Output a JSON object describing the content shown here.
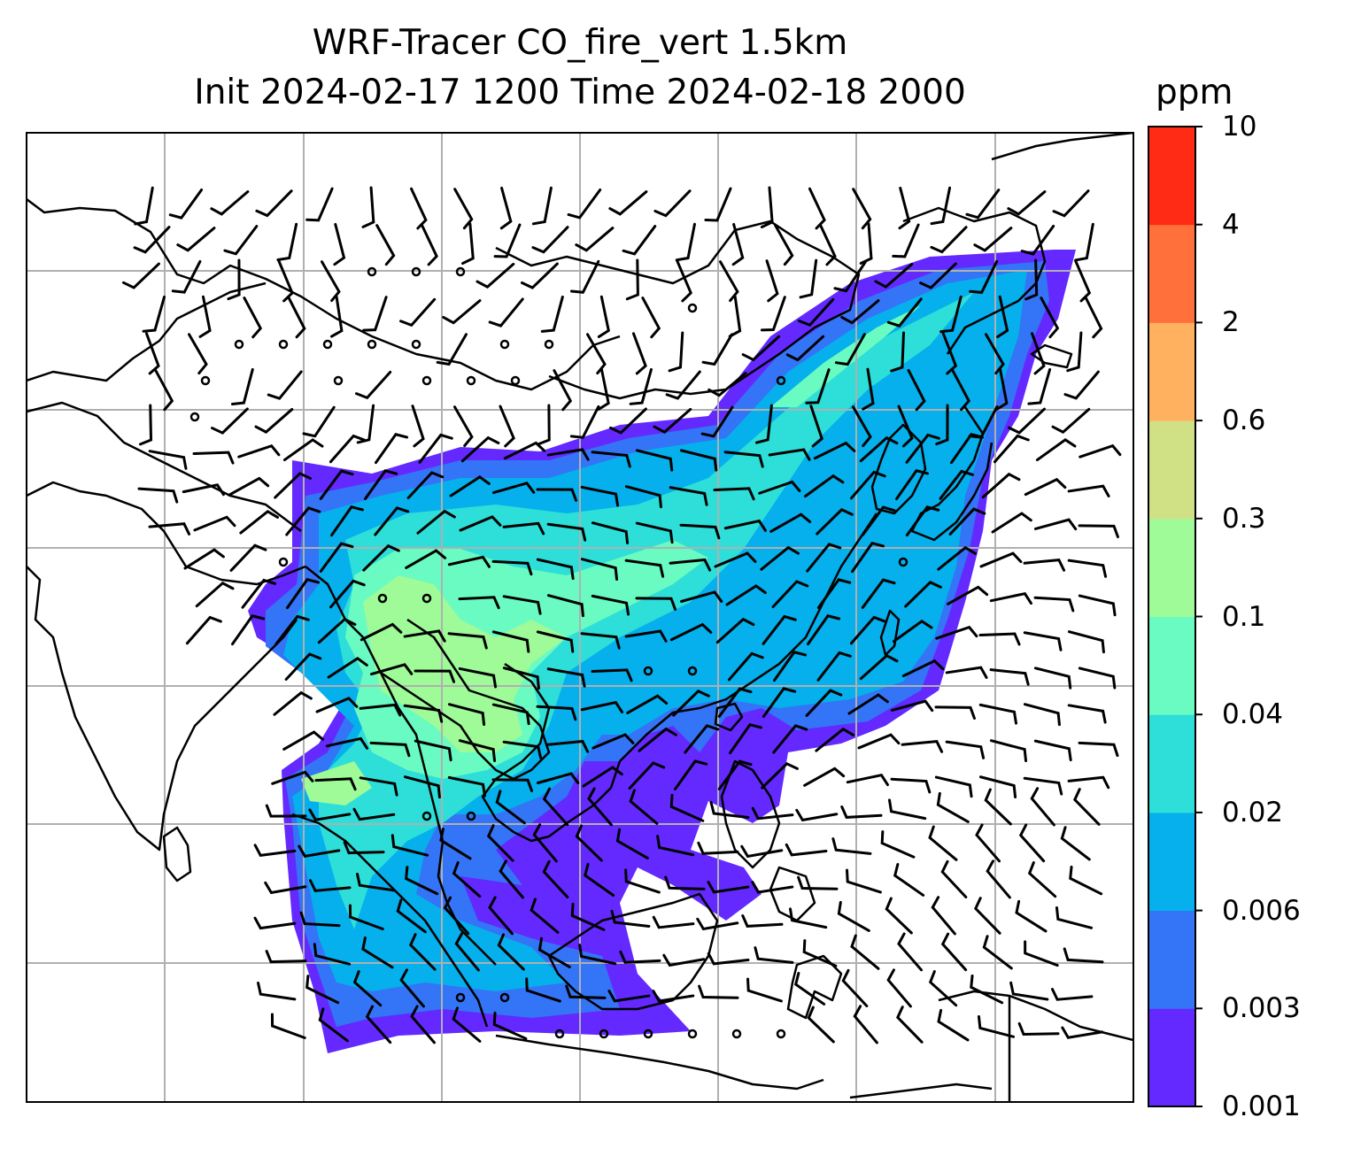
{
  "title": {
    "line1": "WRF-Tracer CO_fire_vert 1.5km",
    "line2": "Init 2024-02-17 1200 Time 2024-02-18 2000"
  },
  "colorbar": {
    "unit": "ppm",
    "levels": [
      "0.001",
      "0.003",
      "0.006",
      "0.02",
      "0.04",
      "0.1",
      "0.3",
      "0.6",
      "2",
      "4",
      "10"
    ],
    "colors": [
      "#6329ff",
      "#3474f6",
      "#05b0ec",
      "#2ddfd8",
      "#69fbc1",
      "#9ffa98",
      "#d0e185",
      "#ffb160",
      "#ff703a",
      "#ff2b15"
    ]
  },
  "map": {
    "gridlines": true,
    "colors": {
      "gridline": "#b0b0b0",
      "coastline": "#000000",
      "barb": "#000000"
    }
  }
}
